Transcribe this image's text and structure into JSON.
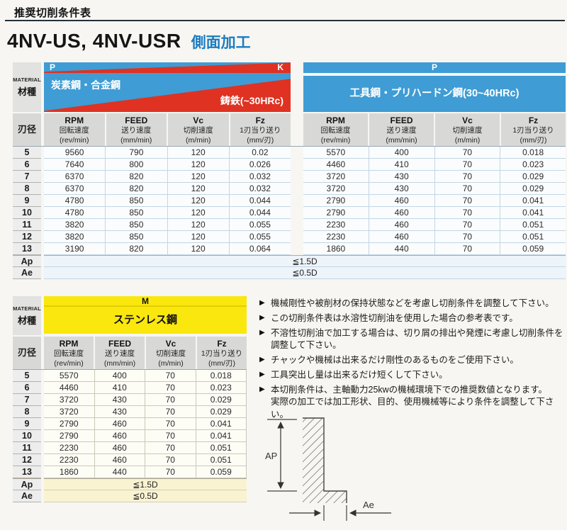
{
  "page": {
    "header_label": "推奨切削条件表",
    "title": "4NV-US, 4NV-USR",
    "subtitle": "側面加工"
  },
  "colors": {
    "band_blue": "#3f9cd4",
    "band_red": "#df3222",
    "band_yellow": "#fae70d",
    "subtitle_blue": "#1b7cc0",
    "header_gray": "#d8d9d7"
  },
  "table1": {
    "material_label_en": "MATERIAL",
    "material_label_jp": "材種",
    "diameter_label": "刃径",
    "left_group": {
      "iso_left": "P",
      "iso_right": "K",
      "material_top": "炭素鋼・合金鋼",
      "material_bottom": "鋳鉄(~30HRc)"
    },
    "right_group": {
      "iso": "P",
      "material": "工具鋼・プリハードン鋼(30~40HRc)"
    },
    "columns": [
      {
        "line1": "RPM",
        "line2": "回転速度",
        "line3": "(rev/min)"
      },
      {
        "line1": "FEED",
        "line2": "送り速度",
        "line3": "(mm/min)"
      },
      {
        "line1": "Vc",
        "line2": "切削速度",
        "line3": "(m/min)"
      },
      {
        "line1": "Fz",
        "line2": "1刃当り送り",
        "line3": "(mm/刃)"
      }
    ],
    "rows": [
      {
        "d": "5",
        "left": [
          "9560",
          "790",
          "120",
          "0.02"
        ],
        "right": [
          "5570",
          "400",
          "70",
          "0.018"
        ]
      },
      {
        "d": "6",
        "left": [
          "7640",
          "800",
          "120",
          "0.026"
        ],
        "right": [
          "4460",
          "410",
          "70",
          "0.023"
        ]
      },
      {
        "d": "7",
        "left": [
          "6370",
          "820",
          "120",
          "0.032"
        ],
        "right": [
          "3720",
          "430",
          "70",
          "0.029"
        ]
      },
      {
        "d": "8",
        "left": [
          "6370",
          "820",
          "120",
          "0.032"
        ],
        "right": [
          "3720",
          "430",
          "70",
          "0.029"
        ]
      },
      {
        "d": "9",
        "left": [
          "4780",
          "850",
          "120",
          "0.044"
        ],
        "right": [
          "2790",
          "460",
          "70",
          "0.041"
        ]
      },
      {
        "d": "10",
        "left": [
          "4780",
          "850",
          "120",
          "0.044"
        ],
        "right": [
          "2790",
          "460",
          "70",
          "0.041"
        ]
      },
      {
        "d": "11",
        "left": [
          "3820",
          "850",
          "120",
          "0.055"
        ],
        "right": [
          "2230",
          "460",
          "70",
          "0.051"
        ]
      },
      {
        "d": "12",
        "left": [
          "3820",
          "850",
          "120",
          "0.055"
        ],
        "right": [
          "2230",
          "460",
          "70",
          "0.051"
        ]
      },
      {
        "d": "13",
        "left": [
          "3190",
          "820",
          "120",
          "0.064"
        ],
        "right": [
          "1860",
          "440",
          "70",
          "0.059"
        ]
      }
    ],
    "ap_label": "Ap",
    "ap_value": "≦1.5D",
    "ae_label": "Ae",
    "ae_value": "≦0.5D"
  },
  "table2": {
    "material_label_en": "MATERIAL",
    "material_label_jp": "材種",
    "diameter_label": "刃径",
    "group": {
      "iso": "M",
      "material": "ステンレス鋼"
    },
    "rows": [
      {
        "d": "5",
        "values": [
          "5570",
          "400",
          "70",
          "0.018"
        ]
      },
      {
        "d": "6",
        "values": [
          "4460",
          "410",
          "70",
          "0.023"
        ]
      },
      {
        "d": "7",
        "values": [
          "3720",
          "430",
          "70",
          "0.029"
        ]
      },
      {
        "d": "8",
        "values": [
          "3720",
          "430",
          "70",
          "0.029"
        ]
      },
      {
        "d": "9",
        "values": [
          "2790",
          "460",
          "70",
          "0.041"
        ]
      },
      {
        "d": "10",
        "values": [
          "2790",
          "460",
          "70",
          "0.041"
        ]
      },
      {
        "d": "11",
        "values": [
          "2230",
          "460",
          "70",
          "0.051"
        ]
      },
      {
        "d": "12",
        "values": [
          "2230",
          "460",
          "70",
          "0.051"
        ]
      },
      {
        "d": "13",
        "values": [
          "1860",
          "440",
          "70",
          "0.059"
        ]
      }
    ],
    "ap_label": "Ap",
    "ap_value": "≦1.5D",
    "ae_label": "Ae",
    "ae_value": "≦0.5D"
  },
  "notes": {
    "marker": "▶",
    "items": [
      "機械剛性や被削材の保持状態などを考慮し切削条件を調整して下さい。",
      "この切削条件表は水溶性切削油を使用した場合の参考表です。",
      "不溶性切削油で加工する場合は、切り屑の排出や発煙に考慮し切削条件を調整して下さい。",
      "チャックや機械は出来るだけ剛性のあるものをご使用下さい。",
      "工具突出し量は出来るだけ短くして下さい。",
      "本切削条件は、主軸動力25kwの機械環境下での推奨数値となります。\n実際の加工では加工形状、目的、使用機械等により条件を調整して下さい。"
    ]
  },
  "diagram": {
    "ap_label": "AP",
    "ae_label": "Ae"
  }
}
